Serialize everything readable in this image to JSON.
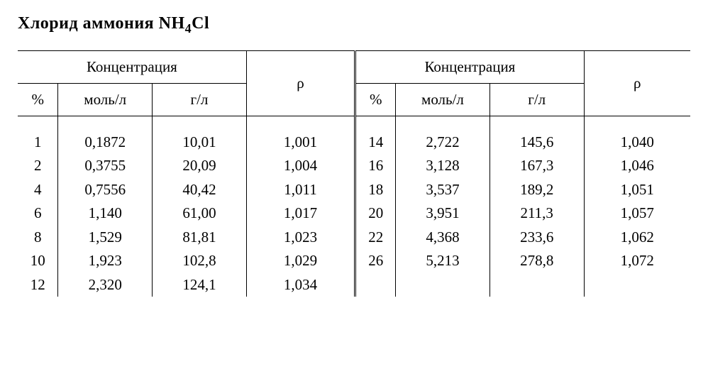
{
  "title_text": "Хлорид аммония NH",
  "title_sub": "4",
  "title_tail": "Cl",
  "headers": {
    "concentration": "Концентрация",
    "percent": "%",
    "mol_per_l": "моль/л",
    "g_per_l": "г/л",
    "rho": "ρ"
  },
  "left_rows": [
    {
      "p": "1",
      "m": "0,1872",
      "g": "10,01",
      "r": "1,001"
    },
    {
      "p": "2",
      "m": "0,3755",
      "g": "20,09",
      "r": "1,004"
    },
    {
      "p": "4",
      "m": "0,7556",
      "g": "40,42",
      "r": "1,011"
    },
    {
      "p": "6",
      "m": "1,140",
      "g": "61,00",
      "r": "1,017"
    },
    {
      "p": "8",
      "m": "1,529",
      "g": "81,81",
      "r": "1,023"
    },
    {
      "p": "10",
      "m": "1,923",
      "g": "102,8",
      "r": "1,029"
    },
    {
      "p": "12",
      "m": "2,320",
      "g": "124,1",
      "r": "1,034"
    }
  ],
  "right_rows": [
    {
      "p": "14",
      "m": "2,722",
      "g": "145,6",
      "r": "1,040"
    },
    {
      "p": "16",
      "m": "3,128",
      "g": "167,3",
      "r": "1,046"
    },
    {
      "p": "18",
      "m": "3,537",
      "g": "189,2",
      "r": "1,051"
    },
    {
      "p": "20",
      "m": "3,951",
      "g": "211,3",
      "r": "1,057"
    },
    {
      "p": "22",
      "m": "4,368",
      "g": "233,6",
      "r": "1,062"
    },
    {
      "p": "26",
      "m": "5,213",
      "g": "278,8",
      "r": "1,072"
    },
    {
      "p": "",
      "m": "",
      "g": "",
      "r": ""
    }
  ]
}
